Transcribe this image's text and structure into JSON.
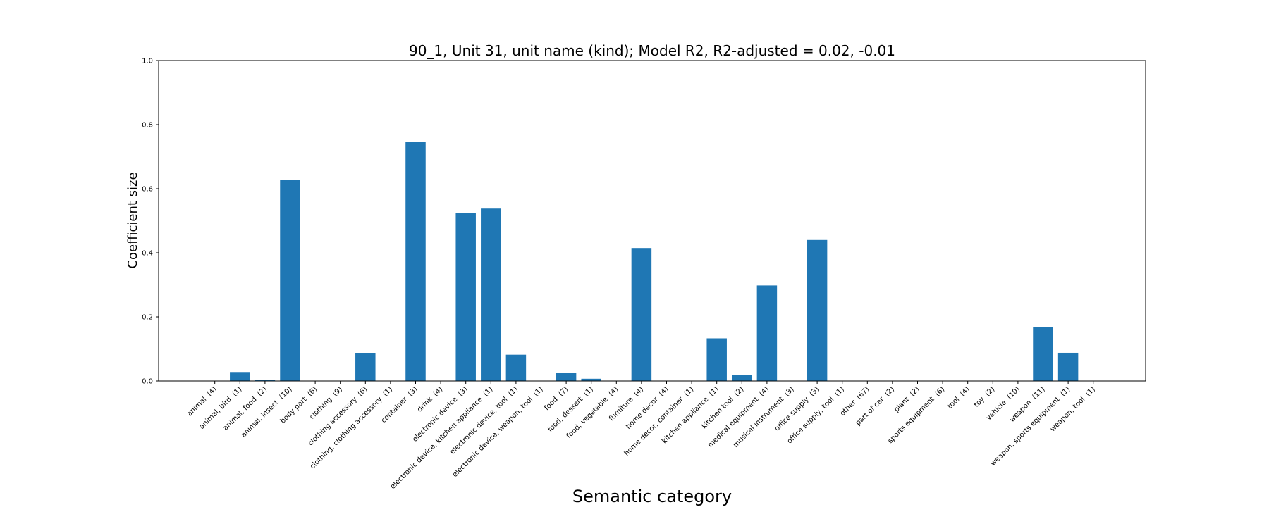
{
  "chart_data": {
    "type": "bar",
    "title": "90_1, Unit 31, unit name (kind); Model R2, R2-adjusted = 0.02, -0.01",
    "xlabel": "Semantic category",
    "ylabel": "Coefficient size",
    "ylim": [
      0,
      1.0
    ],
    "yticks": [
      "0.0",
      "0.2",
      "0.4",
      "0.6",
      "0.8",
      "1.0"
    ],
    "bar_color": "#1f77b4",
    "grid": false,
    "categories": [
      "animal  (4)",
      "animal, bird  (1)",
      "animal, food  (2)",
      "animal, insect  (10)",
      "body part  (6)",
      "clothing  (9)",
      "clothing accessory  (6)",
      "clothing, clothing accessory  (1)",
      "container  (3)",
      "drink  (4)",
      "electronic device  (3)",
      "electronic device, kitchen appliance  (1)",
      "electronic device, tool  (1)",
      "electronic device, weapon, tool  (1)",
      "food  (7)",
      "food, dessert  (1)",
      "food, vegetable  (4)",
      "furniture  (4)",
      "home decor  (4)",
      "home decor, container  (1)",
      "kitchen appliance  (1)",
      "kitchen tool  (2)",
      "medical equipment  (4)",
      "musical instrument  (3)",
      "office supply  (3)",
      "office supply, tool  (1)",
      "other  (67)",
      "part of car  (2)",
      "plant  (2)",
      "sports equipment  (6)",
      "tool  (4)",
      "toy  (2)",
      "vehicle  (10)",
      "weapon  (11)",
      "weapon, sports equipment  (1)",
      "weapon, tool  (1)"
    ],
    "values": [
      0.0,
      0.028,
      0.003,
      0.628,
      0.0,
      0.0,
      0.086,
      0.0,
      0.747,
      0.0,
      0.525,
      0.538,
      0.082,
      0.0,
      0.026,
      0.007,
      0.0,
      0.415,
      0.0,
      0.0,
      0.133,
      0.018,
      0.298,
      0.0,
      0.44,
      0.0,
      0.0,
      0.0,
      0.0,
      0.0,
      0.0,
      0.0,
      0.0,
      0.168,
      0.088,
      0.0
    ]
  }
}
